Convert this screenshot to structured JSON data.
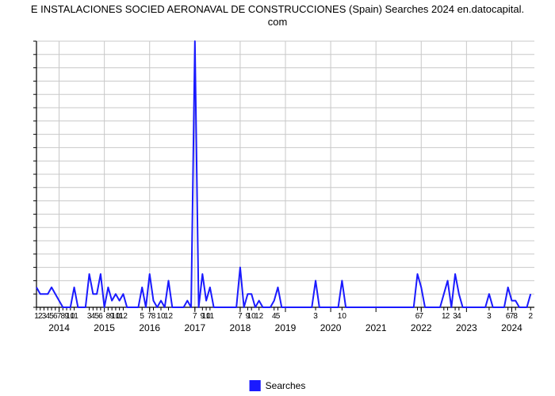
{
  "chart": {
    "type": "line",
    "title": "E INSTALACIONES SOCIED AERONAVAL DE CONSTRUCCIONES (Spain) Searches 2024 en.datocapital.\ncom",
    "title_fontsize": 13,
    "background_color": "#ffffff",
    "grid_color": "#c8c8c8",
    "axis_color": "#000000",
    "line_color": "#1a1aff",
    "line_width": 2,
    "x_axis": {
      "min": 0,
      "max": 132,
      "year_ticks": [
        {
          "pos": 6,
          "label": "2014"
        },
        {
          "pos": 18,
          "label": "2015"
        },
        {
          "pos": 30,
          "label": "2016"
        },
        {
          "pos": 42,
          "label": "2017"
        },
        {
          "pos": 54,
          "label": "2018"
        },
        {
          "pos": 66,
          "label": "2019"
        },
        {
          "pos": 78,
          "label": "2020"
        },
        {
          "pos": 90,
          "label": "2021"
        },
        {
          "pos": 102,
          "label": "2022"
        },
        {
          "pos": 114,
          "label": "2023"
        },
        {
          "pos": 126,
          "label": "2024"
        }
      ],
      "minor_ticks": [
        {
          "pos": 0,
          "label": "1"
        },
        {
          "pos": 1,
          "label": "2"
        },
        {
          "pos": 2,
          "label": "3"
        },
        {
          "pos": 3,
          "label": "4"
        },
        {
          "pos": 4,
          "label": "5"
        },
        {
          "pos": 5,
          "label": "6"
        },
        {
          "pos": 6,
          "label": "7"
        },
        {
          "pos": 7,
          "label": "8"
        },
        {
          "pos": 8,
          "label": "9"
        },
        {
          "pos": 9,
          "label": "10"
        },
        {
          "pos": 10,
          "label": "11"
        },
        {
          "pos": 14,
          "label": "3"
        },
        {
          "pos": 15,
          "label": "4"
        },
        {
          "pos": 16,
          "label": "5"
        },
        {
          "pos": 17,
          "label": "6"
        },
        {
          "pos": 19,
          "label": "8"
        },
        {
          "pos": 20,
          "label": "9"
        },
        {
          "pos": 21,
          "label": "10"
        },
        {
          "pos": 22,
          "label": "11"
        },
        {
          "pos": 23,
          "label": "12"
        },
        {
          "pos": 28,
          "label": "5"
        },
        {
          "pos": 30,
          "label": "7"
        },
        {
          "pos": 31,
          "label": "8"
        },
        {
          "pos": 33,
          "label": "10"
        },
        {
          "pos": 35,
          "label": "12"
        },
        {
          "pos": 42,
          "label": "7"
        },
        {
          "pos": 44,
          "label": "9"
        },
        {
          "pos": 45,
          "label": "10"
        },
        {
          "pos": 46,
          "label": "11"
        },
        {
          "pos": 54,
          "label": "7"
        },
        {
          "pos": 56,
          "label": "9"
        },
        {
          "pos": 57,
          "label": "10"
        },
        {
          "pos": 59,
          "label": "12"
        },
        {
          "pos": 63,
          "label": "4"
        },
        {
          "pos": 64,
          "label": "5"
        },
        {
          "pos": 74,
          "label": "3"
        },
        {
          "pos": 81,
          "label": "10"
        },
        {
          "pos": 101,
          "label": "6"
        },
        {
          "pos": 102,
          "label": "7"
        },
        {
          "pos": 108,
          "label": "1"
        },
        {
          "pos": 109,
          "label": "2"
        },
        {
          "pos": 111,
          "label": "3"
        },
        {
          "pos": 112,
          "label": "4"
        },
        {
          "pos": 120,
          "label": "3"
        },
        {
          "pos": 125,
          "label": "6"
        },
        {
          "pos": 126,
          "label": "7"
        },
        {
          "pos": 127,
          "label": "8"
        },
        {
          "pos": 131,
          "label": "2"
        }
      ]
    },
    "y_axis": {
      "min": 0,
      "max": 40,
      "tick_step": 2,
      "label_fontsize": 11
    },
    "series": {
      "name": "Searches",
      "points": [
        [
          0,
          3
        ],
        [
          1,
          2
        ],
        [
          2,
          2
        ],
        [
          3,
          2
        ],
        [
          4,
          3
        ],
        [
          5,
          2
        ],
        [
          6,
          1
        ],
        [
          7,
          0
        ],
        [
          8,
          0
        ],
        [
          9,
          0
        ],
        [
          10,
          3
        ],
        [
          11,
          0
        ],
        [
          12,
          0
        ],
        [
          13,
          0
        ],
        [
          14,
          5
        ],
        [
          15,
          2
        ],
        [
          16,
          2
        ],
        [
          17,
          5
        ],
        [
          18,
          0
        ],
        [
          19,
          3
        ],
        [
          20,
          1
        ],
        [
          21,
          2
        ],
        [
          22,
          1
        ],
        [
          23,
          2
        ],
        [
          24,
          0
        ],
        [
          25,
          0
        ],
        [
          26,
          0
        ],
        [
          27,
          0
        ],
        [
          28,
          3
        ],
        [
          29,
          0
        ],
        [
          30,
          5
        ],
        [
          31,
          1
        ],
        [
          32,
          0
        ],
        [
          33,
          1
        ],
        [
          34,
          0
        ],
        [
          35,
          4
        ],
        [
          36,
          0
        ],
        [
          37,
          0
        ],
        [
          38,
          0
        ],
        [
          39,
          0
        ],
        [
          40,
          1
        ],
        [
          41,
          0
        ],
        [
          42,
          40
        ],
        [
          43,
          0
        ],
        [
          44,
          5
        ],
        [
          45,
          1
        ],
        [
          46,
          3
        ],
        [
          47,
          0
        ],
        [
          48,
          0
        ],
        [
          49,
          0
        ],
        [
          50,
          0
        ],
        [
          51,
          0
        ],
        [
          52,
          0
        ],
        [
          53,
          0
        ],
        [
          54,
          6
        ],
        [
          55,
          0
        ],
        [
          56,
          2
        ],
        [
          57,
          2
        ],
        [
          58,
          0
        ],
        [
          59,
          1
        ],
        [
          60,
          0
        ],
        [
          61,
          0
        ],
        [
          62,
          0
        ],
        [
          63,
          1
        ],
        [
          64,
          3
        ],
        [
          65,
          0
        ],
        [
          66,
          0
        ],
        [
          67,
          0
        ],
        [
          68,
          0
        ],
        [
          69,
          0
        ],
        [
          70,
          0
        ],
        [
          71,
          0
        ],
        [
          72,
          0
        ],
        [
          73,
          0
        ],
        [
          74,
          4
        ],
        [
          75,
          0
        ],
        [
          76,
          0
        ],
        [
          77,
          0
        ],
        [
          78,
          0
        ],
        [
          79,
          0
        ],
        [
          80,
          0
        ],
        [
          81,
          4
        ],
        [
          82,
          0
        ],
        [
          83,
          0
        ],
        [
          84,
          0
        ],
        [
          85,
          0
        ],
        [
          86,
          0
        ],
        [
          87,
          0
        ],
        [
          88,
          0
        ],
        [
          89,
          0
        ],
        [
          90,
          0
        ],
        [
          91,
          0
        ],
        [
          92,
          0
        ],
        [
          93,
          0
        ],
        [
          94,
          0
        ],
        [
          95,
          0
        ],
        [
          96,
          0
        ],
        [
          97,
          0
        ],
        [
          98,
          0
        ],
        [
          99,
          0
        ],
        [
          100,
          0
        ],
        [
          101,
          5
        ],
        [
          102,
          3
        ],
        [
          103,
          0
        ],
        [
          104,
          0
        ],
        [
          105,
          0
        ],
        [
          106,
          0
        ],
        [
          107,
          0
        ],
        [
          108,
          2
        ],
        [
          109,
          4
        ],
        [
          110,
          0
        ],
        [
          111,
          5
        ],
        [
          112,
          2
        ],
        [
          113,
          0
        ],
        [
          114,
          0
        ],
        [
          115,
          0
        ],
        [
          116,
          0
        ],
        [
          117,
          0
        ],
        [
          118,
          0
        ],
        [
          119,
          0
        ],
        [
          120,
          2
        ],
        [
          121,
          0
        ],
        [
          122,
          0
        ],
        [
          123,
          0
        ],
        [
          124,
          0
        ],
        [
          125,
          3
        ],
        [
          126,
          1
        ],
        [
          127,
          1
        ],
        [
          128,
          0
        ],
        [
          129,
          0
        ],
        [
          130,
          0
        ],
        [
          131,
          2
        ]
      ]
    },
    "legend": {
      "label": "Searches",
      "swatch_color": "#1a1aff",
      "position": "bottom-center"
    }
  }
}
